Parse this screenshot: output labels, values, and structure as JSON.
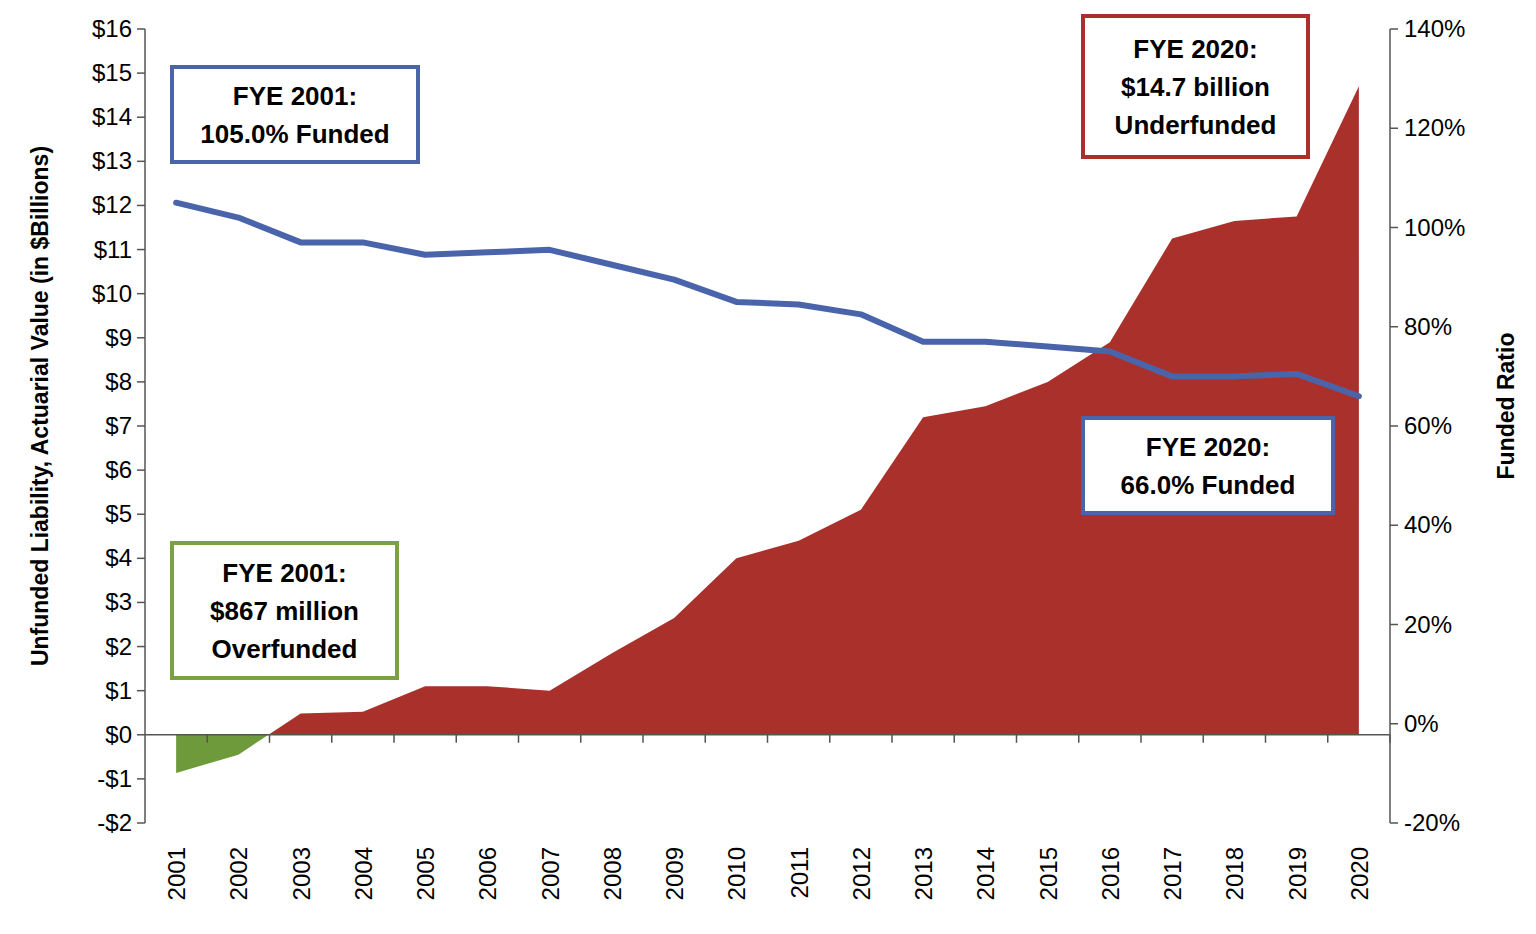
{
  "chart_data": {
    "type": "area",
    "y_label": "Unfunded Liability, Actuarial Value (in $Billions)",
    "y2_label": "Funded Ratio",
    "categories": [
      "2001",
      "2002",
      "2003",
      "2004",
      "2005",
      "2006",
      "2007",
      "2008",
      "2009",
      "2010",
      "2011",
      "2012",
      "2013",
      "2014",
      "2015",
      "2016",
      "2017",
      "2018",
      "2019",
      "2020"
    ],
    "series": [
      {
        "type": "area",
        "colors": [
          "#6f9a3c",
          "#6f9a3c",
          "#aa312b",
          "#aa312b",
          "#aa312b",
          "#aa312b",
          "#aa312b",
          "#aa312b",
          "#aa312b",
          "#aa312b",
          "#aa312b",
          "#aa312b",
          "#aa312b",
          "#aa312b",
          "#aa312b",
          "#aa312b",
          "#aa312b",
          "#aa312b",
          "#aa312b",
          "#aa312b"
        ],
        "values": [
          -0.867,
          -0.45,
          0.48,
          0.52,
          1.1,
          1.1,
          1.0,
          1.85,
          2.65,
          4.0,
          4.4,
          5.1,
          7.2,
          7.45,
          8.0,
          8.9,
          11.25,
          11.65,
          11.75,
          14.7
        ]
      },
      {
        "type": "line",
        "axis": "y2",
        "color": "#4a64ab",
        "values": [
          105.0,
          102,
          97,
          97,
          94.5,
          95,
          95.5,
          92.5,
          89.5,
          85,
          84.5,
          82.5,
          77,
          77,
          76,
          75,
          70,
          70,
          70.5,
          66.0
        ]
      }
    ],
    "ylim": [
      -2,
      16
    ],
    "yticks": [
      {
        "value": -2,
        "label": "-$2"
      },
      {
        "value": -1,
        "label": "-$1"
      },
      {
        "value": 0,
        "label": "$0"
      },
      {
        "value": 1,
        "label": "$1"
      },
      {
        "value": 2,
        "label": "$2"
      },
      {
        "value": 3,
        "label": "$3"
      },
      {
        "value": 4,
        "label": "$4"
      },
      {
        "value": 5,
        "label": "$5"
      },
      {
        "value": 6,
        "label": "$6"
      },
      {
        "value": 7,
        "label": "$7"
      },
      {
        "value": 8,
        "label": "$8"
      },
      {
        "value": 9,
        "label": "$9"
      },
      {
        "value": 10,
        "label": "$10"
      },
      {
        "value": 11,
        "label": "$11"
      },
      {
        "value": 12,
        "label": "$12"
      },
      {
        "value": 13,
        "label": "$13"
      },
      {
        "value": 14,
        "label": "$14"
      },
      {
        "value": 15,
        "label": "$15"
      },
      {
        "value": 16,
        "label": "$16"
      }
    ],
    "y2lim": [
      -20,
      140
    ],
    "y2ticks": [
      {
        "value": -20,
        "label": "-20%"
      },
      {
        "value": 0,
        "label": "0%"
      },
      {
        "value": 20,
        "label": "20%"
      },
      {
        "value": 40,
        "label": "40%"
      },
      {
        "value": 60,
        "label": "60%"
      },
      {
        "value": 80,
        "label": "80%"
      },
      {
        "value": 100,
        "label": "100%"
      },
      {
        "value": 120,
        "label": "120%"
      },
      {
        "value": 140,
        "label": "140%"
      }
    ],
    "grid": false,
    "annotations": [
      {
        "text": [
          "FYE 2001:",
          "105.0% Funded"
        ]
      },
      {
        "text": [
          "FYE 2020:",
          "$14.7 billion",
          "Underfunded"
        ]
      },
      {
        "text": [
          "FYE 2020:",
          "66.0% Funded"
        ]
      },
      {
        "text": [
          "FYE 2001:",
          "$867 million",
          "Overfunded"
        ]
      }
    ]
  }
}
